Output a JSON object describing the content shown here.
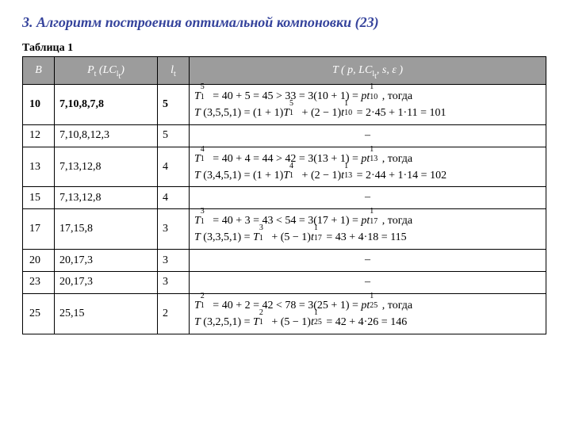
{
  "heading": {
    "number": "3.",
    "text": "Алгоритм построения оптимальной компоновки (23)"
  },
  "table_caption": "Таблица 1",
  "table": {
    "columns": {
      "b_header_html": "B",
      "pt_header_html": "P<sub>t</sub> (LC<sub>l<sub>t</sub></sub>)",
      "l_header_html": "l<sub>t</sub>",
      "t_header_html": "T ( p, LC<sub>l<sub>t</sub></sub>, s, ε )"
    },
    "rows": [
      {
        "highlight": true,
        "b": "10",
        "pt": "7,10,8,7,8",
        "l": "5",
        "t_html": "<span class='math'>T</span><span class='subsup'><span class='ss-sup'>5</span><span class='ss-sub'>1</span></span> = 40 + 5 = 45 &gt; 33 = 3(10 + 1) = <span class='math'>pt</span><span class='subsup'><span class='ss-sup'>1</span><span class='ss-sub'>10</span></span> , тогда<br><span class='math'>T</span> (3,5,5,1) = (1 + 1)<span class='math'>T</span><span class='subsup'><span class='ss-sup'>5</span><span class='ss-sub'>1</span></span> + (2 − 1)<span class='math'>t</span><span class='subsup'><span class='ss-sup'>1</span><span class='ss-sub'>10</span></span> = 2·45 + 1·11 = 101"
      },
      {
        "highlight": false,
        "b": "12",
        "pt": "7,10,8,12,3",
        "l": "5",
        "t_dash": "–"
      },
      {
        "highlight": false,
        "b": "13",
        "pt": "7,13,12,8",
        "l": "4",
        "t_html": "<span class='math'>T</span><span class='subsup'><span class='ss-sup'>4</span><span class='ss-sub'>1</span></span> = 40 + 4 = 44 &gt; 42 = 3(13 + 1) = <span class='math'>pt</span><span class='subsup'><span class='ss-sup'>1</span><span class='ss-sub'>13</span></span> , тогда<br><span class='math'>T</span> (3,4,5,1) = (1 + 1)<span class='math'>T</span><span class='subsup'><span class='ss-sup'>4</span><span class='ss-sub'>1</span></span> + (2 − 1)<span class='math'>t</span><span class='subsup'><span class='ss-sup'>1</span><span class='ss-sub'>13</span></span> = 2·44 + 1·14 = 102"
      },
      {
        "highlight": false,
        "b": "15",
        "pt": "7,13,12,8",
        "l": "4",
        "t_dash": "–"
      },
      {
        "highlight": false,
        "b": "17",
        "pt": "17,15,8",
        "l": "3",
        "t_html": "<span class='math'>T</span><span class='subsup'><span class='ss-sup'>3</span><span class='ss-sub'>1</span></span> = 40 + 3 = 43 &lt; 54 = 3(17 + 1) = <span class='math'>pt</span><span class='subsup'><span class='ss-sup'>1</span><span class='ss-sub'>17</span></span> , тогда<br><span class='math'>T</span> (3,3,5,1) = <span class='math'>T</span><span class='subsup'><span class='ss-sup'>3</span><span class='ss-sub'>1</span></span> + (5 − 1)<span class='math'>t</span><span class='subsup'><span class='ss-sup'>1</span><span class='ss-sub'>17</span></span> = 43 + 4·18 = 115"
      },
      {
        "highlight": false,
        "b": "20",
        "pt": "20,17,3",
        "l": "3",
        "t_dash": "–"
      },
      {
        "highlight": false,
        "b": "23",
        "pt": "20,17,3",
        "l": "3",
        "t_dash": "–"
      },
      {
        "highlight": false,
        "b": "25",
        "pt": "25,15",
        "l": "2",
        "t_html": "<span class='math'>T</span><span class='subsup'><span class='ss-sup'>2</span><span class='ss-sub'>1</span></span> = 40 + 2 = 42 &lt; 78 = 3(25 + 1) = <span class='math'>pt</span><span class='subsup'><span class='ss-sup'>1</span><span class='ss-sub'>25</span></span> , тогда<br><span class='math'>T</span> (3,2,5,1) = <span class='math'>T</span><span class='subsup'><span class='ss-sup'>2</span><span class='ss-sub'>1</span></span> + (5 − 1)<span class='math'>t</span><span class='subsup'><span class='ss-sup'>1</span><span class='ss-sub'>25</span></span> = 42 + 4·26 = 146"
      }
    ]
  },
  "colors": {
    "heading": "#35439c",
    "header_bg": "#9c9c9c",
    "header_fg": "#ffffff",
    "border": "#000000",
    "background": "#ffffff"
  }
}
